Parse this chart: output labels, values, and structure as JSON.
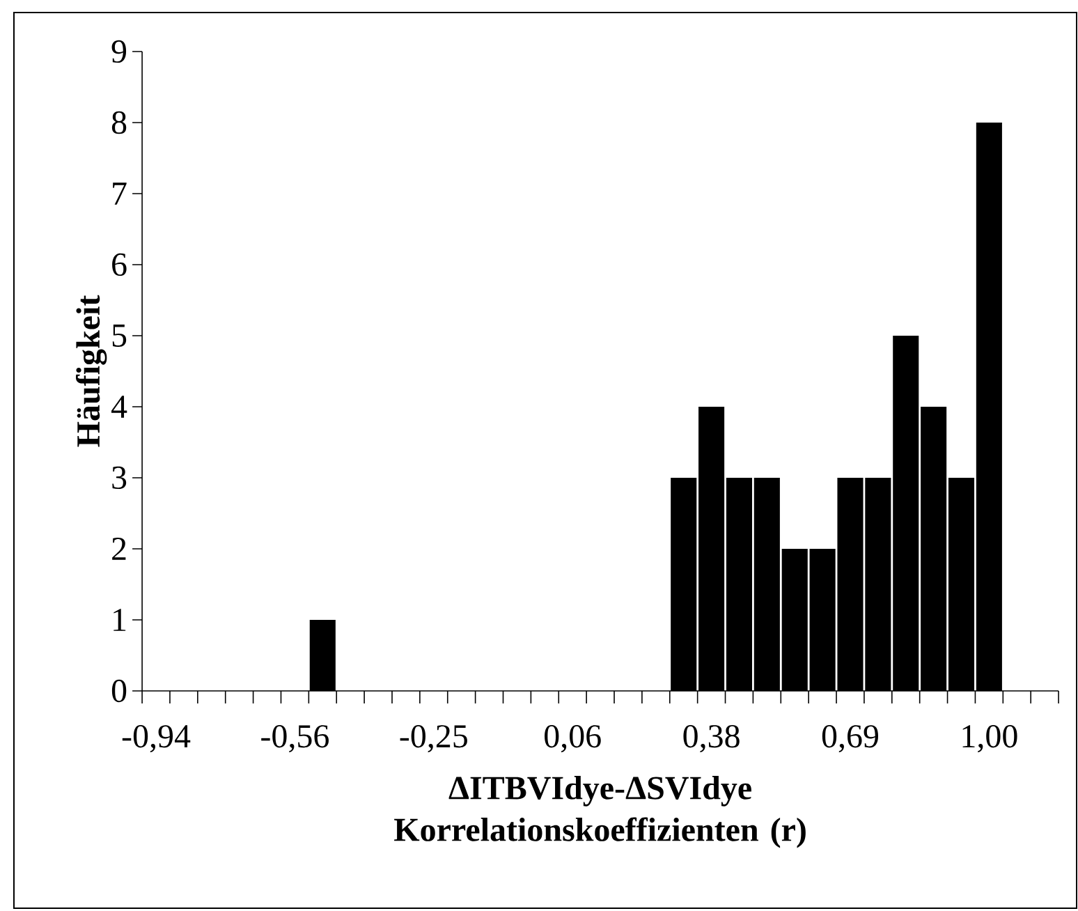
{
  "chart_data": {
    "type": "bar",
    "categories": [
      "-0,94",
      null,
      null,
      null,
      null,
      "-0,56",
      null,
      null,
      null,
      null,
      "-0,25",
      null,
      null,
      null,
      null,
      "0,06",
      null,
      null,
      null,
      null,
      "0,38",
      null,
      null,
      null,
      null,
      "0,69",
      null,
      null,
      null,
      null,
      "1,00",
      null,
      null
    ],
    "values": [
      0,
      0,
      0,
      0,
      0,
      0,
      1,
      0,
      0,
      0,
      0,
      0,
      0,
      0,
      0,
      0,
      0,
      0,
      0,
      3,
      4,
      3,
      3,
      2,
      2,
      3,
      3,
      5,
      4,
      3,
      8,
      0,
      0
    ],
    "color": "#000000",
    "ylim": [
      0,
      9
    ],
    "yticks": [
      0,
      1,
      2,
      3,
      4,
      5,
      6,
      7,
      8,
      9
    ],
    "xlabel": "ΔITBVIdye-ΔSVIdye Korrelationskoeffizienten (r)",
    "ylabel": "Häufigkeit"
  }
}
